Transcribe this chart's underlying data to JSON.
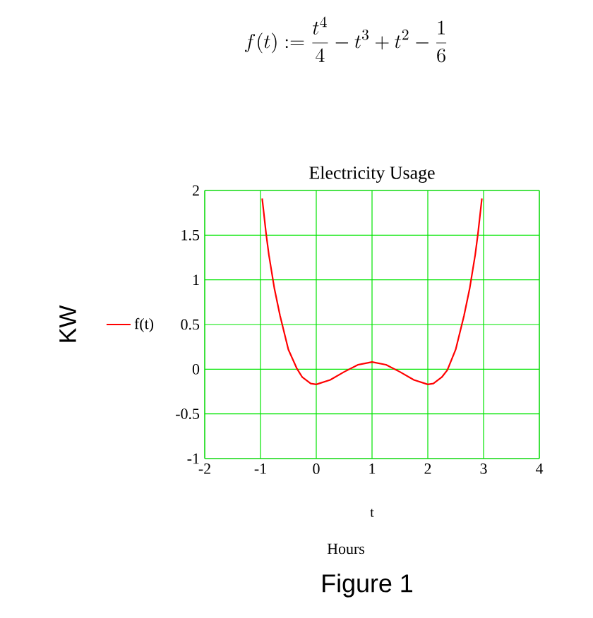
{
  "chart_data": {
    "type": "line",
    "title": "Electricity Usage",
    "xlabel": "t",
    "ylabel": "KW",
    "annotations": [
      "f(t) := \\frac{t^{4}}{4} - t^{3} + t^{2} - \\frac{1}{6}",
      "Hours",
      "Figure 1"
    ],
    "series": [
      {
        "name": "f(t)",
        "color": "#ff0000",
        "x": [
          -0.97,
          -0.95,
          -0.9,
          -0.85,
          -0.75,
          -0.65,
          -0.5,
          -0.35,
          -0.25,
          -0.1,
          0,
          0.25,
          0.5,
          0.75,
          1,
          1.25,
          1.5,
          1.75,
          2,
          2.1,
          2.25,
          2.35,
          2.5,
          2.65,
          2.75,
          2.85,
          2.9,
          2.95,
          2.97
        ],
        "values": [
          1.91,
          1.8,
          1.52,
          1.28,
          0.9,
          0.6,
          0.22,
          0.01,
          -0.09,
          -0.16,
          -0.17,
          -0.12,
          -0.03,
          0.05,
          0.08,
          0.05,
          -0.03,
          -0.12,
          -0.17,
          -0.16,
          -0.09,
          -0.01,
          0.22,
          0.6,
          0.9,
          1.28,
          1.52,
          1.8,
          1.91
        ]
      }
    ],
    "xlim": [
      -2,
      4
    ],
    "ylim": [
      -1,
      2
    ],
    "xticks": [
      -2,
      -1,
      0,
      1,
      2,
      3,
      4
    ],
    "yticks": [
      -1,
      -0.5,
      0,
      0.5,
      1,
      1.5,
      2
    ],
    "grid": true,
    "legend": "left",
    "marker": "none",
    "line_style": "solid"
  }
}
